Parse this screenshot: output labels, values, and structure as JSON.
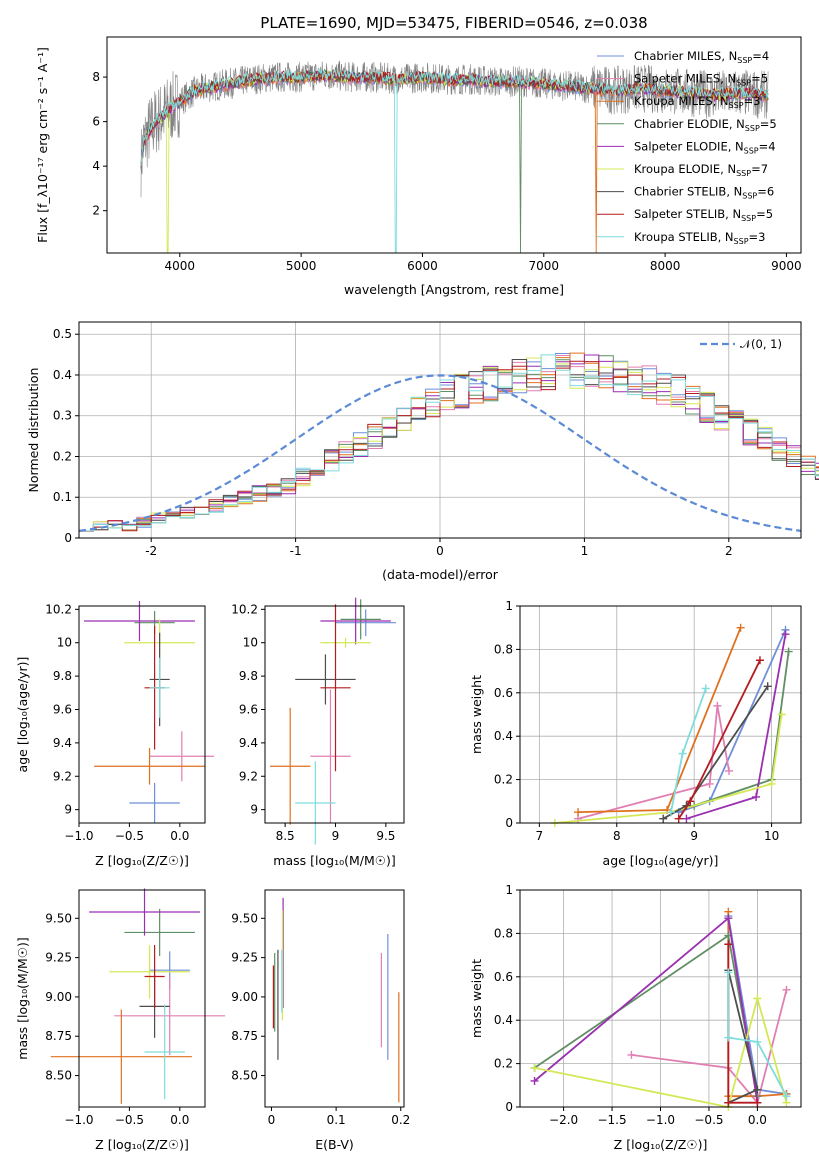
{
  "colors": [
    "#6f8fd8",
    "#e17fb3",
    "#e0701f",
    "#5f8f63",
    "#9a2fb0",
    "#d4e856",
    "#4d4d4d",
    "#b51b1f",
    "#7fdcdc"
  ],
  "chart_data": [
    {
      "type": "line",
      "title": "PLATE=1690, MJD=53475, FIBERID=0546, z=0.038",
      "xlabel": "wavelength [Angstrom, rest frame]",
      "ylabel": "Flux [f_λ10⁻¹⁷ erg cm⁻² s⁻¹ A⁻¹]",
      "xlim": [
        3400,
        9120
      ],
      "ylim": [
        0.1,
        9.8
      ],
      "xticks": [
        4000,
        5000,
        6000,
        7000,
        8000,
        9000
      ],
      "yticks": [
        2,
        4,
        6,
        8
      ],
      "data_series": "data (grey)",
      "continuum_points": {
        "x": [
          3680,
          3700,
          3750,
          3800,
          3900,
          4000,
          4100,
          4200,
          4300,
          4400,
          4500,
          4600,
          4800,
          5000,
          5200,
          5400,
          5600,
          5800,
          6000,
          6200,
          6400,
          6600,
          6800,
          7000,
          7200,
          7400,
          7600,
          7800,
          8000,
          8200,
          8400,
          8600,
          8800
        ],
        "y": [
          4.2,
          5.0,
          5.6,
          6.0,
          6.5,
          6.9,
          7.3,
          7.5,
          7.6,
          7.7,
          7.8,
          7.9,
          8.0,
          8.0,
          8.1,
          8.0,
          8.0,
          7.9,
          8.0,
          7.9,
          7.9,
          7.8,
          7.8,
          7.7,
          7.6,
          7.5,
          7.4,
          7.5,
          7.4,
          7.3,
          7.2,
          7.3,
          7.2
        ]
      },
      "legend": [
        {
          "label": "Chabrier MILES, N",
          "nssp": "=4"
        },
        {
          "label": "Salpeter MILES, N",
          "nssp": "=5"
        },
        {
          "label": "Kroupa MILES, N",
          "nssp": "=3"
        },
        {
          "label": "Chabrier ELODIE, N",
          "nssp": "=5"
        },
        {
          "label": "Salpeter ELODIE, N",
          "nssp": "=4"
        },
        {
          "label": "Kroupa ELODIE, N",
          "nssp": "=7"
        },
        {
          "label": "Chabrier STELIB, N",
          "nssp": "=6"
        },
        {
          "label": "Salpeter STELIB, N",
          "nssp": "=5"
        },
        {
          "label": "Kroupa STELIB, N",
          "nssp": "=3"
        }
      ],
      "legend_sub": "SSP",
      "legend_position": "top-right"
    },
    {
      "type": "histogram",
      "xlabel": "(data-model)/error",
      "ylabel": "Normed distribution",
      "xlim": [
        -2.5,
        2.5
      ],
      "ylim": [
        0,
        0.53
      ],
      "xticks": [
        -2,
        -1,
        0,
        1,
        2
      ],
      "yticks": [
        0.0,
        0.1,
        0.2,
        0.3,
        0.4,
        0.5
      ],
      "grid": true,
      "bin_width": 0.1,
      "base_values": [
        0.03,
        0.03,
        0.03,
        0.03,
        0.04,
        0.05,
        0.05,
        0.06,
        0.07,
        0.08,
        0.09,
        0.1,
        0.11,
        0.12,
        0.13,
        0.15,
        0.17,
        0.19,
        0.21,
        0.23,
        0.25,
        0.27,
        0.29,
        0.31,
        0.33,
        0.35,
        0.36,
        0.37,
        0.38,
        0.39,
        0.4,
        0.4,
        0.41,
        0.41,
        0.41,
        0.41,
        0.41,
        0.4,
        0.39,
        0.38,
        0.37,
        0.36,
        0.34,
        0.32,
        0.3,
        0.28,
        0.26,
        0.24,
        0.22,
        0.2,
        0.18,
        0.16,
        0.14,
        0.12,
        0.11,
        0.09,
        0.08,
        0.07,
        0.06,
        0.05,
        0.05,
        0.04,
        0.03,
        0.03,
        0.03,
        0.02,
        0.02,
        0.02,
        0.02,
        0.02
      ],
      "hist_start": -2.5,
      "legend": "𝒩(0, 1)",
      "legend_position": "top-right"
    },
    {
      "type": "errorbar",
      "xlabel": "Z [log₁₀(Z/Z☉)]",
      "ylabel": "age  [log₁₀(age/yr)]",
      "xlim": [
        -1.0,
        0.25
      ],
      "ylim": [
        8.92,
        10.22
      ],
      "xticks": [
        -1.0,
        -0.5,
        0.0
      ],
      "xticklabels": [
        "−1.0",
        "−0.5",
        "0.0"
      ],
      "yticks": [
        9.0,
        9.2,
        9.4,
        9.6,
        9.8,
        10.0,
        10.2
      ],
      "points": [
        {
          "x": -0.25,
          "y": 9.04,
          "xerr": 0.25,
          "yerr": 0.12
        },
        {
          "x": 0.02,
          "y": 9.32,
          "xerr": 0.32,
          "yerr": 0.15
        },
        {
          "x": -0.3,
          "y": 9.26,
          "xerr": 0.55,
          "yerr": 0.11
        },
        {
          "x": -0.25,
          "y": 10.12,
          "xerr": 0.2,
          "yerr": 0.07
        },
        {
          "x": -0.4,
          "y": 10.13,
          "xerr": 0.55,
          "yerr": 0.12
        },
        {
          "x": -0.2,
          "y": 10.0,
          "xerr": 0.35,
          "yerr": 0.14
        },
        {
          "x": -0.2,
          "y": 9.78,
          "xerr": 0.1,
          "yerr": 0.28
        },
        {
          "x": -0.25,
          "y": 9.73,
          "xerr": 0.1,
          "yerr": 0.37
        },
        {
          "x": -0.2,
          "y": 9.73,
          "xerr": 0.1,
          "yerr": 0.18
        }
      ]
    },
    {
      "type": "errorbar",
      "xlabel": "mass [log₁₀(M/M☉)]",
      "ylabel": "",
      "xlim": [
        8.3,
        9.68
      ],
      "ylim": [
        8.92,
        10.22
      ],
      "xticks": [
        8.5,
        9.0,
        9.5
      ],
      "yticks": [
        9.0,
        9.2,
        9.4,
        9.6,
        9.8,
        10.0,
        10.2
      ],
      "points": [
        {
          "x": 9.3,
          "y": 10.12,
          "xerr": 0.3,
          "yerr": 0.08
        },
        {
          "x": 8.95,
          "y": 9.32,
          "xerr": 0.2,
          "yerr": 0.4
        },
        {
          "x": 8.55,
          "y": 9.26,
          "xerr": 0.2,
          "yerr": 0.35
        },
        {
          "x": 9.25,
          "y": 10.14,
          "xerr": 0.2,
          "yerr": 0.12
        },
        {
          "x": 9.2,
          "y": 10.13,
          "xerr": 0.35,
          "yerr": 0.14
        },
        {
          "x": 9.1,
          "y": 10.0,
          "xerr": 0.25,
          "yerr": 0.03
        },
        {
          "x": 8.9,
          "y": 9.78,
          "xerr": 0.3,
          "yerr": 0.15
        },
        {
          "x": 9.0,
          "y": 9.73,
          "xerr": 0.15,
          "yerr": 0.5
        },
        {
          "x": 8.8,
          "y": 9.04,
          "xerr": 0.2,
          "yerr": 0.25
        }
      ]
    },
    {
      "type": "line",
      "xlabel": "age  [log₁₀(age/yr)]",
      "ylabel": "mass weight",
      "xlim": [
        6.75,
        10.38
      ],
      "ylim": [
        0,
        1.0
      ],
      "xticks": [
        7,
        8,
        9,
        10
      ],
      "yticks": [
        0.0,
        0.2,
        0.4,
        0.6,
        0.8,
        1.0
      ],
      "grid": true,
      "series": [
        {
          "x": [
            8.8,
            9.2,
            10.18
          ],
          "y": [
            0.05,
            0.1,
            0.89
          ]
        },
        {
          "x": [
            7.5,
            9.2,
            9.3,
            9.45
          ],
          "y": [
            0.02,
            0.18,
            0.54,
            0.24
          ]
        },
        {
          "x": [
            7.5,
            8.65,
            9.6
          ],
          "y": [
            0.05,
            0.06,
            0.9
          ]
        },
        {
          "x": [
            8.7,
            9.0,
            10.0,
            10.22
          ],
          "y": [
            0.05,
            0.08,
            0.2,
            0.79
          ]
        },
        {
          "x": [
            8.9,
            9.8,
            10.18
          ],
          "y": [
            0.02,
            0.12,
            0.87
          ]
        },
        {
          "x": [
            7.2,
            8.7,
            10.0,
            10.13
          ],
          "y": [
            0.0,
            0.05,
            0.18,
            0.5
          ]
        },
        {
          "x": [
            8.6,
            8.9,
            9.95
          ],
          "y": [
            0.02,
            0.08,
            0.63
          ]
        },
        {
          "x": [
            8.8,
            8.95,
            9.85
          ],
          "y": [
            0.02,
            0.1,
            0.75
          ]
        },
        {
          "x": [
            8.7,
            8.85,
            9.15
          ],
          "y": [
            0.05,
            0.32,
            0.62
          ]
        }
      ]
    },
    {
      "type": "errorbar",
      "xlabel": "Z [log₁₀(Z/Z☉)]",
      "ylabel": "mass [log₁₀(M/M☉)]",
      "xlim": [
        -1.0,
        0.25
      ],
      "ylim": [
        8.3,
        9.68
      ],
      "xticks": [
        -1.0,
        -0.5,
        0.0
      ],
      "xticklabels": [
        "−1.0",
        "−0.5",
        "0.0"
      ],
      "yticks": [
        8.5,
        8.75,
        9.0,
        9.25,
        9.5
      ],
      "yticklabels": [
        "8.50",
        "8.75",
        "9.00",
        "9.25",
        "9.50"
      ],
      "points": [
        {
          "x": -0.1,
          "y": 9.17,
          "xerr": 0.2,
          "yerr": 0.12
        },
        {
          "x": -0.1,
          "y": 8.88,
          "xerr": 0.55,
          "yerr": 0.25
        },
        {
          "x": -0.58,
          "y": 8.62,
          "xerr": 0.7,
          "yerr": 0.3
        },
        {
          "x": -0.2,
          "y": 9.41,
          "xerr": 0.35,
          "yerr": 0.15
        },
        {
          "x": -0.35,
          "y": 9.54,
          "xerr": 0.55,
          "yerr": 0.15
        },
        {
          "x": -0.3,
          "y": 9.16,
          "xerr": 0.4,
          "yerr": 0.17
        },
        {
          "x": -0.25,
          "y": 8.94,
          "xerr": 0.15,
          "yerr": 0.2
        },
        {
          "x": -0.25,
          "y": 9.13,
          "xerr": 0.1,
          "yerr": 0.2
        },
        {
          "x": -0.15,
          "y": 8.65,
          "xerr": 0.2,
          "yerr": 0.3
        }
      ]
    },
    {
      "type": "errorbar",
      "xlabel": "E(B-V)",
      "ylabel": "",
      "xlim": [
        -0.01,
        0.205
      ],
      "ylim": [
        8.3,
        9.68
      ],
      "xticks": [
        0.0,
        0.1,
        0.2
      ],
      "yticks": [
        8.5,
        8.75,
        9.0,
        9.25,
        9.5
      ],
      "yticklabels": [
        "8.50",
        "8.75",
        "9.00",
        "9.25",
        "9.50"
      ],
      "points": [
        {
          "x": 0.18,
          "y": 9.0,
          "xerr": 0,
          "yerr": 0.4
        },
        {
          "x": 0.17,
          "y": 8.98,
          "xerr": 0,
          "yerr": 0.3
        },
        {
          "x": 0.197,
          "y": 8.68,
          "xerr": 0,
          "yerr": 0.35
        },
        {
          "x": 0.005,
          "y": 9.03,
          "xerr": 0,
          "yerr": 0.25
        },
        {
          "x": 0.018,
          "y": 9.28,
          "xerr": 0,
          "yerr": 0.35
        },
        {
          "x": 0.017,
          "y": 9.2,
          "xerr": 0,
          "yerr": 0.35
        },
        {
          "x": 0.01,
          "y": 8.95,
          "xerr": 0,
          "yerr": 0.35
        },
        {
          "x": 0.003,
          "y": 9.0,
          "xerr": 0,
          "yerr": 0.2
        },
        {
          "x": 0.016,
          "y": 9.1,
          "xerr": 0,
          "yerr": 0.2
        }
      ]
    },
    {
      "type": "line",
      "xlabel": "Z [log₁₀(Z/Z☉)]",
      "ylabel": "mass weight",
      "xlim": [
        -2.45,
        0.45
      ],
      "ylim": [
        0,
        1.0
      ],
      "xticks": [
        -2.0,
        -1.5,
        -1.0,
        -0.5,
        0.0
      ],
      "xticklabels": [
        "−2.0",
        "−1.5",
        "−1.0",
        "−0.5",
        "0.0"
      ],
      "yticks": [
        0.0,
        0.2,
        0.4,
        0.6,
        0.8,
        1.0
      ],
      "grid": true,
      "series": [
        {
          "x": [
            -0.3,
            0.0,
            0.3
          ],
          "y": [
            0.88,
            0.08,
            0.06
          ]
        },
        {
          "x": [
            -1.3,
            -0.3,
            0.0,
            0.3
          ],
          "y": [
            0.24,
            0.18,
            0.02,
            0.54
          ]
        },
        {
          "x": [
            -0.3,
            -0.3,
            0.0,
            0.3
          ],
          "y": [
            0.9,
            0.05,
            0.05,
            0.06
          ]
        },
        {
          "x": [
            -2.3,
            -0.3,
            0.0
          ],
          "y": [
            0.18,
            0.79,
            0.05
          ]
        },
        {
          "x": [
            -2.3,
            -0.3,
            0.0
          ],
          "y": [
            0.12,
            0.87,
            0.02
          ]
        },
        {
          "x": [
            -2.3,
            -0.3,
            0.0,
            0.3
          ],
          "y": [
            0.18,
            0.0,
            0.5,
            0.02
          ]
        },
        {
          "x": [
            -0.3,
            0.0,
            -0.3
          ],
          "y": [
            0.63,
            0.08,
            0.02
          ]
        },
        {
          "x": [
            -0.3,
            -0.3,
            0.0
          ],
          "y": [
            0.75,
            0.02,
            0.02
          ]
        },
        {
          "x": [
            -0.3,
            -0.3,
            0.0,
            0.3
          ],
          "y": [
            0.62,
            0.32,
            0.3,
            0.05
          ]
        }
      ]
    }
  ]
}
